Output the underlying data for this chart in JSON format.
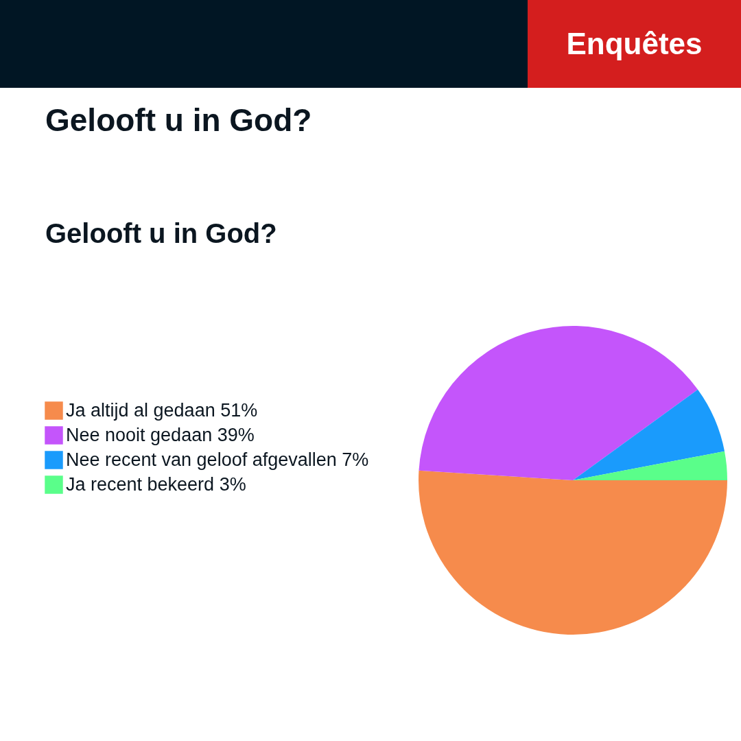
{
  "chart_data": {
    "type": "pie",
    "title": "Gelooft u in God?",
    "subtitle": "Gelooft u in God?",
    "annotations": [
      "Enquêtes"
    ],
    "categories": [
      "Ja altijd al gedaan 51%",
      "Nee nooit gedaan 39%",
      "Nee recent van geloof afgevallen 7%",
      "Ja recent bekeerd 3%"
    ],
    "values": [
      51,
      39,
      7,
      3
    ],
    "colors": [
      "#f68b4c",
      "#c455fb",
      "#1a9bfc",
      "#5afe8a"
    ],
    "legend": "left"
  }
}
